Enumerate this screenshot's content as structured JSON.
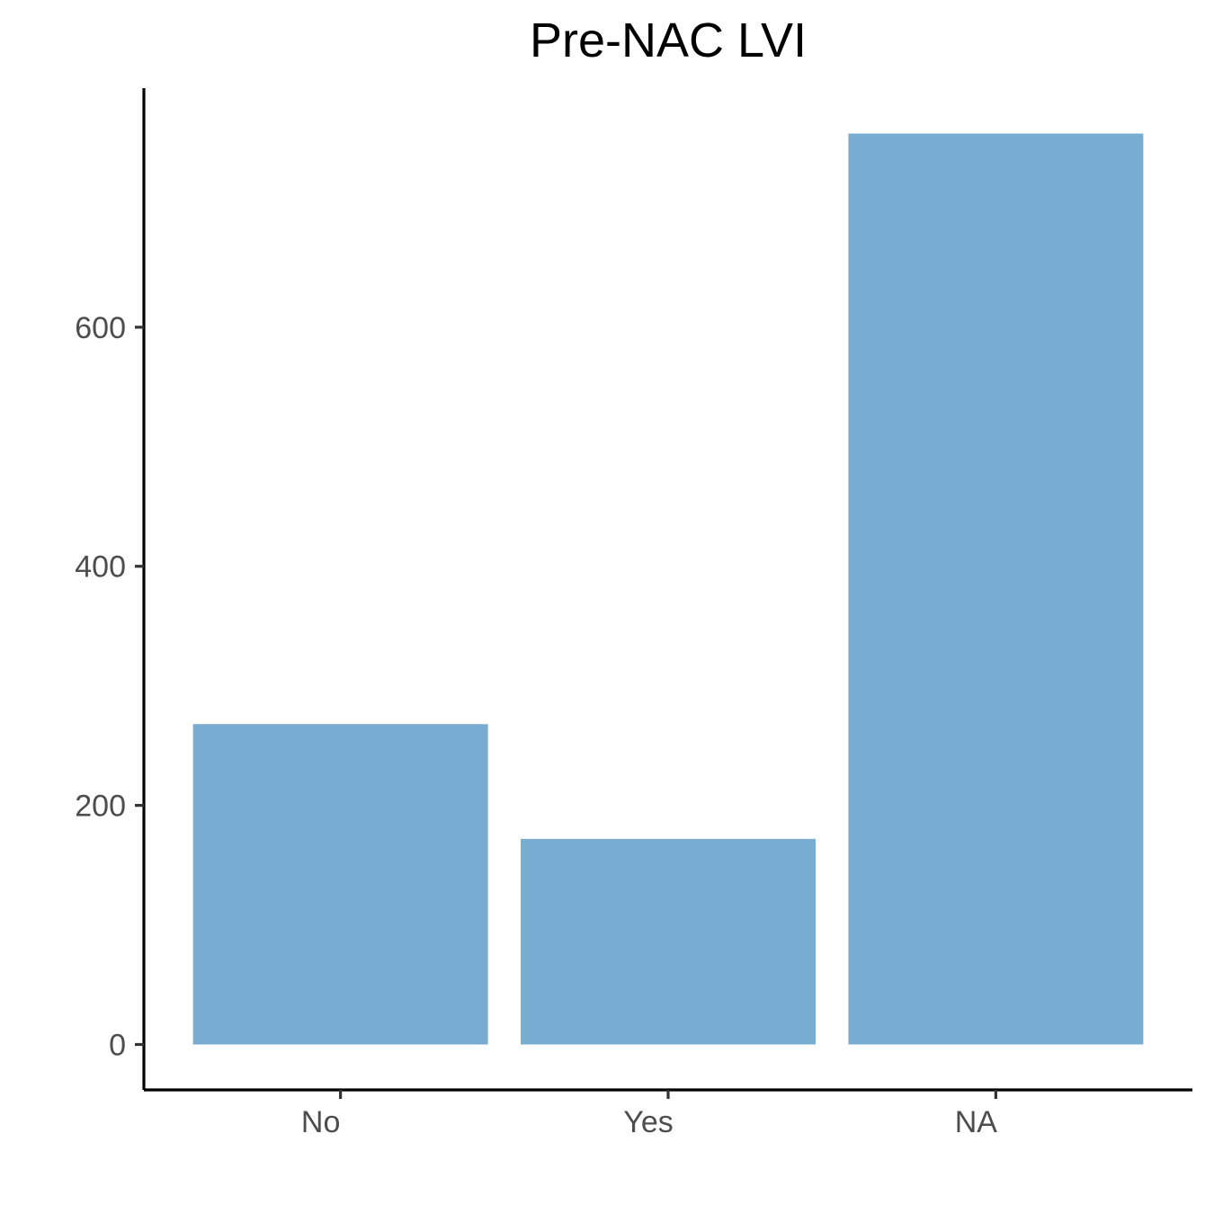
{
  "chart_data": {
    "type": "bar",
    "title": "Pre-NAC LVI",
    "xlabel": "",
    "ylabel": "",
    "categories": [
      "No",
      "Yes",
      "NA"
    ],
    "values": [
      268,
      172,
      762
    ],
    "ylim": [
      -38,
      800
    ],
    "yticks": [
      0,
      200,
      400,
      600
    ],
    "ytick_labels": [
      "0",
      "200",
      "400",
      "600"
    ],
    "bar_color": "#78acd0",
    "grid": false,
    "legend": "none"
  }
}
